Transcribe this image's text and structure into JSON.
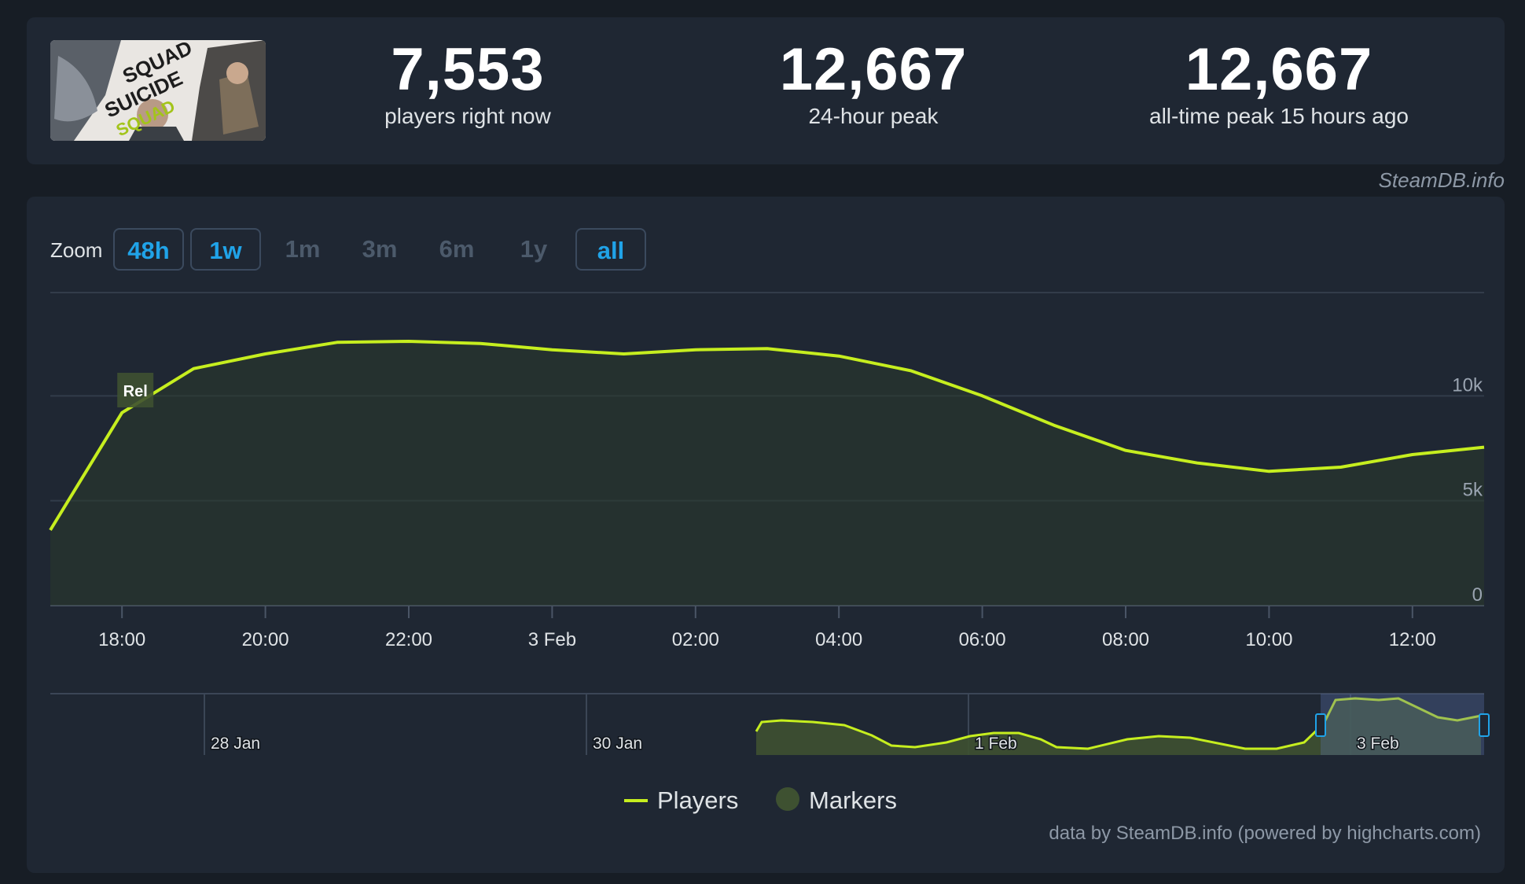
{
  "stats": [
    {
      "value": "7,553",
      "label": "players right now"
    },
    {
      "value": "12,667",
      "label": "24-hour peak"
    },
    {
      "value": "12,667",
      "label": "all-time peak 15 hours ago"
    }
  ],
  "game_art": {
    "text_lines": [
      "SQUAD",
      "SUICIDE",
      "SQUAD"
    ]
  },
  "credit": "SteamDB.info",
  "zoom": {
    "label": "Zoom",
    "buttons": [
      {
        "label": "48h",
        "selected": true
      },
      {
        "label": "1w",
        "selected": true
      },
      {
        "label": "1m",
        "selected": false
      },
      {
        "label": "3m",
        "selected": false
      },
      {
        "label": "6m",
        "selected": false
      },
      {
        "label": "1y",
        "selected": false
      },
      {
        "label": "all",
        "selected": true
      }
    ]
  },
  "chart_data": {
    "type": "area",
    "x_tick_labels": [
      "18:00",
      "20:00",
      "22:00",
      "3 Feb",
      "02:00",
      "04:00",
      "06:00",
      "08:00",
      "10:00",
      "12:00"
    ],
    "y_tick_labels": [
      "0",
      "5k",
      "10k"
    ],
    "ylim": [
      0,
      15000
    ],
    "x_range_hours_from_2feb_1800": [
      -1,
      19
    ],
    "grid": true,
    "series": [
      {
        "name": "Players",
        "color": "#c6ee1f",
        "x_hours_from_2feb_1800": [
          -1,
          0,
          1,
          2,
          3,
          4,
          5,
          6,
          7,
          8,
          9,
          10,
          11,
          12,
          13,
          14,
          15,
          16,
          17,
          18,
          19
        ],
        "values": [
          3600,
          9200,
          11300,
          12000,
          12550,
          12600,
          12500,
          12200,
          12000,
          12200,
          12250,
          11900,
          11200,
          10000,
          8600,
          7400,
          6800,
          6400,
          6600,
          7200,
          7553
        ]
      }
    ],
    "marker": {
      "label": "Rel",
      "x_hours_from_2feb_1800": 0
    },
    "navigator": {
      "tick_labels": [
        "28 Jan",
        "30 Jan",
        "1 Feb",
        "3 Feb"
      ]
    },
    "legend": [
      {
        "name": "Players",
        "color": "#c6ee1f",
        "symbol": "line"
      },
      {
        "name": "Markers",
        "color": "#3e5131",
        "symbol": "circle"
      }
    ],
    "legend_position": "bottom-center"
  },
  "footer_credit": "data by SteamDB.info (powered by highcharts.com)"
}
